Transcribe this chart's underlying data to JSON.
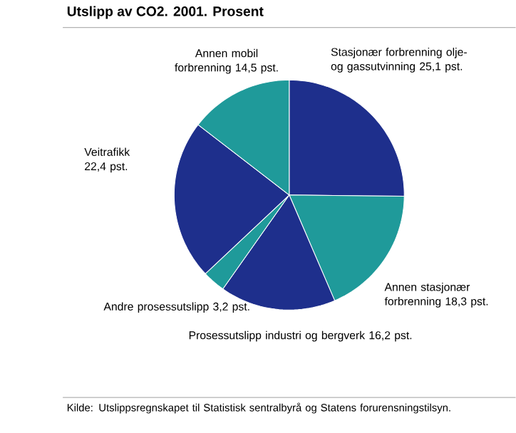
{
  "chart_data": {
    "type": "pie",
    "title": "Utslipp av CO2. 2001. Prosent",
    "categories": [
      "Stasjonær forbrenning olje- og gassutvinning",
      "Annen stasjonær forbrenning",
      "Prosessutslipp industri og bergverk",
      "Andre prosessutslipp",
      "Veitrafikk",
      "Annen mobil forbrenning"
    ],
    "values": [
      25.1,
      18.3,
      16.2,
      3.2,
      22.4,
      14.5
    ],
    "value_labels": [
      "25,1 pst.",
      "18,3 pst.",
      "16,2 pst.",
      "3,2 pst.",
      "22,4 pst.",
      "14,5 pst."
    ],
    "colors": [
      "#1e2f8c",
      "#1f9a9a",
      "#1e2f8c",
      "#1f9a9a",
      "#1e2f8c",
      "#1f9a9a"
    ],
    "annotations": [
      "Kilde: Utslippsregnskapet til Statistisk sentralbyrå og Statens forurensningstilsyn."
    ]
  }
}
